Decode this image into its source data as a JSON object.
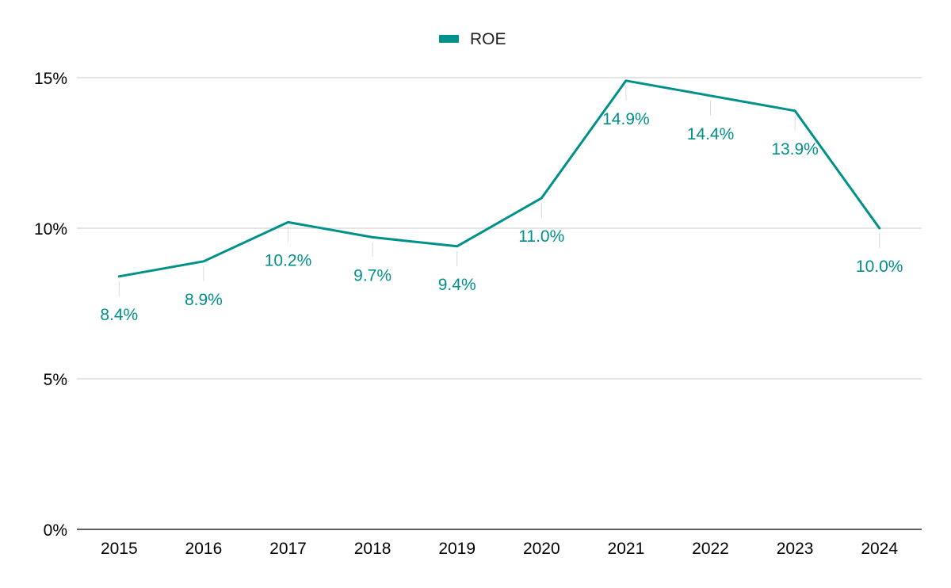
{
  "legend": {
    "items": [
      {
        "label": "ROE",
        "color": "#00908A"
      }
    ],
    "placement": "top-center"
  },
  "colors": {
    "series": "#00908A",
    "grid": "#c8c8c8",
    "axis": "#000000",
    "label_stem": "#d9d9d9"
  },
  "chart_data": {
    "type": "line",
    "title": "",
    "xlabel": "",
    "ylabel": "",
    "x": [
      "2015",
      "2016",
      "2017",
      "2018",
      "2019",
      "2020",
      "2021",
      "2022",
      "2023",
      "2024"
    ],
    "series": [
      {
        "name": "ROE",
        "values": [
          8.4,
          8.9,
          10.2,
          9.7,
          9.4,
          11.0,
          14.9,
          14.4,
          13.9,
          10.0
        ],
        "labels": [
          "8.4%",
          "8.9%",
          "10.2%",
          "9.7%",
          "9.4%",
          "11.0%",
          "14.9%",
          "14.4%",
          "13.9%",
          "10.0%"
        ]
      }
    ],
    "ylim": [
      0,
      15
    ],
    "yticks": [
      0,
      5,
      10,
      15
    ],
    "ytick_labels": [
      "0%",
      "5%",
      "10%",
      "15%"
    ],
    "grid": true,
    "legend_placement": "top-center"
  }
}
